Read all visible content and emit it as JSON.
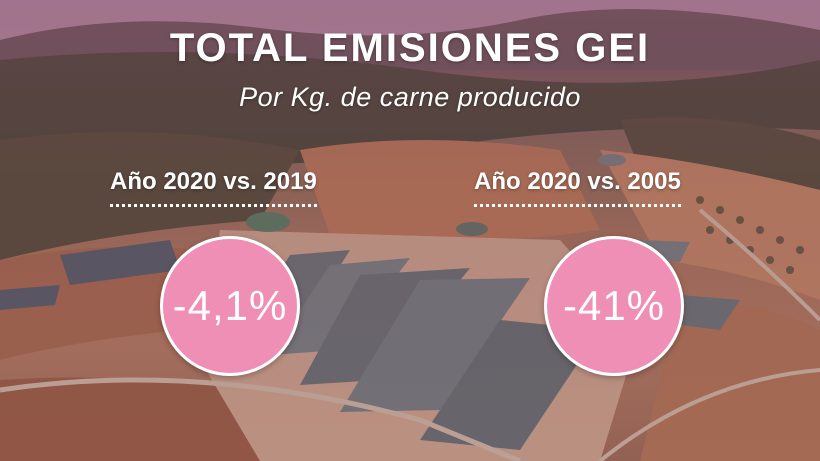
{
  "header": {
    "title": "TOTAL EMISIONES GEI",
    "subtitle": "Por Kg. de carne producido"
  },
  "stats": [
    {
      "label": "Año 2020 vs. 2019",
      "value": "-4,1%"
    },
    {
      "label": "Año 2020 vs. 2005",
      "value": "-41%"
    }
  ],
  "colors": {
    "circle_fill": "#f08fb6",
    "text": "#ffffff",
    "overlay_tint": "#8a4a6a"
  }
}
